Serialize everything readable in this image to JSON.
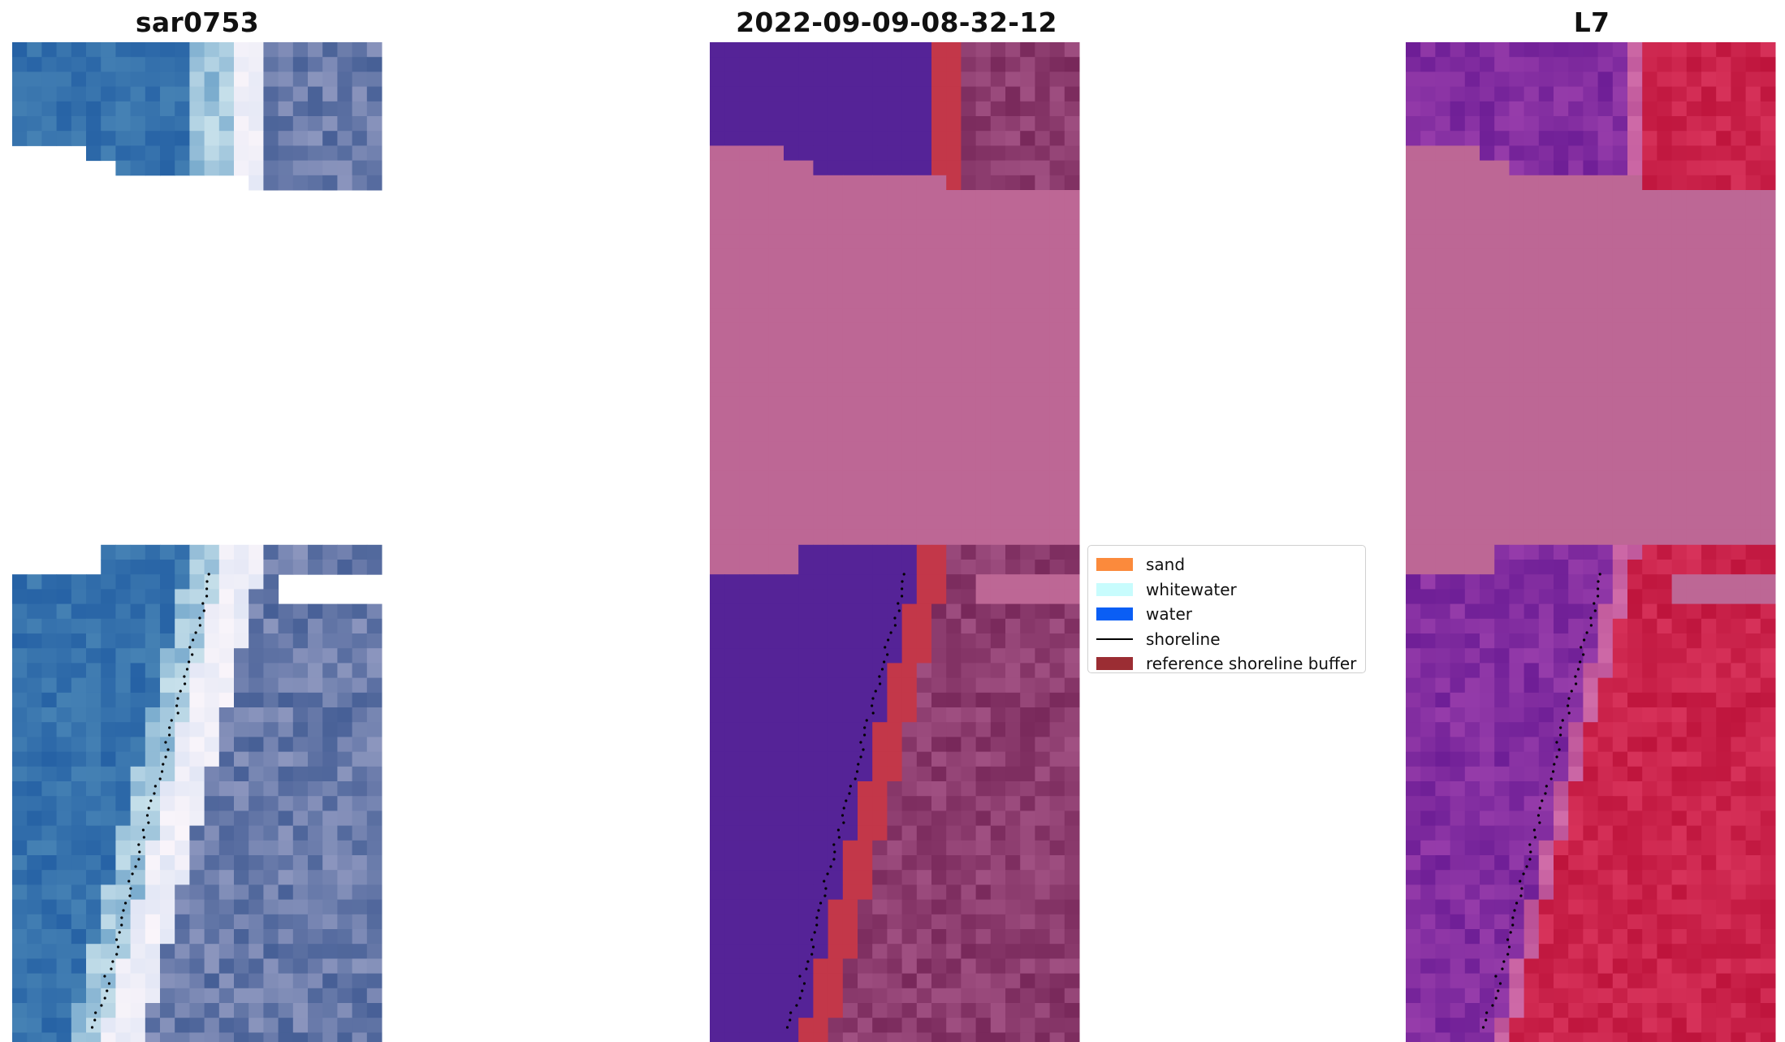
{
  "panels": [
    {
      "title": "sar0753",
      "colormap": "rgb"
    },
    {
      "title": "2022-09-09-08-32-12",
      "colormap": "classification"
    },
    {
      "title": "L7",
      "colormap": "index"
    }
  ],
  "legend": {
    "items": [
      {
        "label": "sand",
        "color": "#fb8a3c",
        "kind": "patch"
      },
      {
        "label": "whitewater",
        "color": "#c8fcfd",
        "kind": "patch"
      },
      {
        "label": "water",
        "color": "#0a5ef5",
        "kind": "patch"
      },
      {
        "label": "shoreline",
        "color": "#000000",
        "kind": "line"
      },
      {
        "label": "reference shoreline buffer",
        "color": "#9b2d33",
        "kind": "patch"
      }
    ]
  },
  "colors": {
    "nodata_mask": "#bd6795",
    "class_background": "#552397",
    "class_buffer": "#c33749",
    "shoreline_dots": "#000000"
  }
}
